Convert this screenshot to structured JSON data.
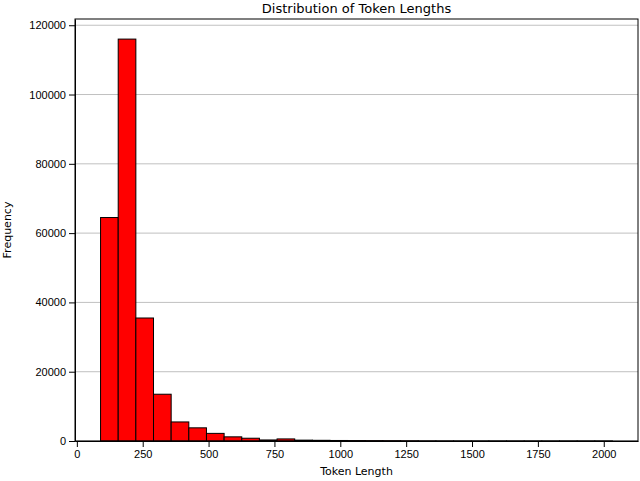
{
  "chart_data": {
    "type": "histogram",
    "title": "Distribution of Token Lengths",
    "x_label": "Token Length",
    "y_label": "Frequency",
    "bins": [
      90,
      157,
      224,
      291,
      358,
      425,
      492,
      559,
      626,
      693,
      760,
      827,
      894,
      961,
      1028,
      1095,
      1162,
      1229,
      1296,
      1363,
      1430,
      1497,
      1564,
      1631,
      1698,
      1765,
      1832,
      1899,
      1966,
      2033
    ],
    "counts": [
      64500,
      116000,
      35500,
      13500,
      5500,
      3800,
      2200,
      1200,
      800,
      300,
      600,
      250,
      200,
      150,
      120,
      100,
      80,
      50,
      20,
      10,
      5,
      5,
      3,
      2,
      2,
      1,
      1,
      1,
      1
    ],
    "color": "#ff0000",
    "xlim": [
      -7,
      2130
    ],
    "xticks": [
      0,
      250,
      500,
      750,
      1000,
      1250,
      1500,
      1750,
      2000
    ],
    "ylim": [
      0,
      121800
    ],
    "yticks": [
      0,
      20000,
      40000,
      60000,
      80000,
      100000,
      120000
    ],
    "grid": true
  }
}
